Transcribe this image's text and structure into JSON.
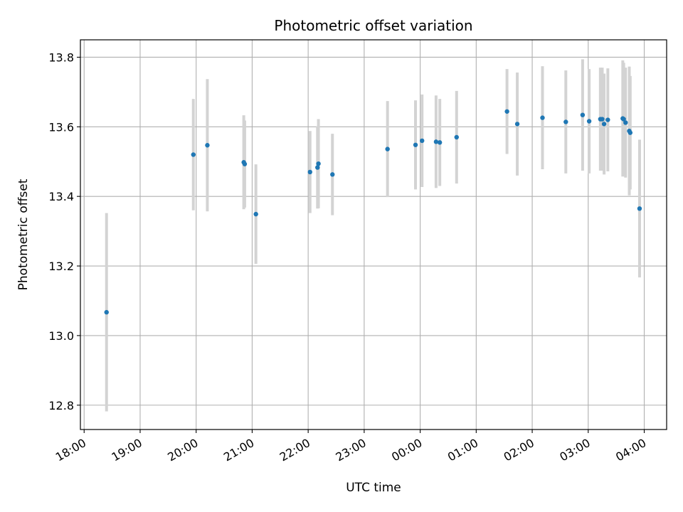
{
  "chart_data": {
    "type": "scatter",
    "title": "Photometric offset variation",
    "xlabel": "UTC time",
    "ylabel": "Photometric offset",
    "x_unit": "UTC time (HH:MM)",
    "xlim": [
      "17:56",
      "04:24"
    ],
    "ylim": [
      12.73,
      13.85
    ],
    "x_ticks": [
      "18:00",
      "19:00",
      "20:00",
      "21:00",
      "22:00",
      "23:00",
      "00:00",
      "01:00",
      "02:00",
      "03:00",
      "04:00"
    ],
    "y_ticks": [
      12.8,
      13.0,
      13.2,
      13.4,
      13.6,
      13.8
    ],
    "grid": true,
    "marker_color": "#1f77b4",
    "errorbar_color": "#d3d3d3",
    "points": [
      {
        "time": "18:24",
        "y": 13.067,
        "err": 0.285
      },
      {
        "time": "19:57",
        "y": 13.52,
        "err": 0.16
      },
      {
        "time": "20:12",
        "y": 13.547,
        "err": 0.19
      },
      {
        "time": "20:51",
        "y": 13.498,
        "err": 0.135
      },
      {
        "time": "20:52",
        "y": 13.493,
        "err": 0.125
      },
      {
        "time": "21:04",
        "y": 13.349,
        "err": 0.143
      },
      {
        "time": "22:02",
        "y": 13.47,
        "err": 0.118
      },
      {
        "time": "22:10",
        "y": 13.483,
        "err": 0.118
      },
      {
        "time": "22:11",
        "y": 13.494,
        "err": 0.128
      },
      {
        "time": "22:26",
        "y": 13.463,
        "err": 0.117
      },
      {
        "time": "23:25",
        "y": 13.536,
        "err": 0.138
      },
      {
        "time": "23:55",
        "y": 13.548,
        "err": 0.128
      },
      {
        "time": "00:02",
        "y": 13.56,
        "err": 0.133
      },
      {
        "time": "00:17",
        "y": 13.557,
        "err": 0.133
      },
      {
        "time": "00:21",
        "y": 13.555,
        "err": 0.125
      },
      {
        "time": "00:39",
        "y": 13.57,
        "err": 0.133
      },
      {
        "time": "01:33",
        "y": 13.644,
        "err": 0.122
      },
      {
        "time": "01:44",
        "y": 13.608,
        "err": 0.148
      },
      {
        "time": "02:11",
        "y": 13.626,
        "err": 0.148
      },
      {
        "time": "02:36",
        "y": 13.614,
        "err": 0.148
      },
      {
        "time": "02:54",
        "y": 13.634,
        "err": 0.16
      },
      {
        "time": "03:01",
        "y": 13.616,
        "err": 0.15
      },
      {
        "time": "03:13",
        "y": 13.622,
        "err": 0.148
      },
      {
        "time": "03:15",
        "y": 13.622,
        "err": 0.148
      },
      {
        "time": "03:17",
        "y": 13.608,
        "err": 0.145
      },
      {
        "time": "03:21",
        "y": 13.62,
        "err": 0.148
      },
      {
        "time": "03:37",
        "y": 13.624,
        "err": 0.167
      },
      {
        "time": "03:38",
        "y": 13.622,
        "err": 0.162
      },
      {
        "time": "03:40",
        "y": 13.612,
        "err": 0.158
      },
      {
        "time": "03:44",
        "y": 13.588,
        "err": 0.185
      },
      {
        "time": "03:45",
        "y": 13.583,
        "err": 0.163
      },
      {
        "time": "03:55",
        "y": 13.365,
        "err": 0.198
      }
    ]
  }
}
